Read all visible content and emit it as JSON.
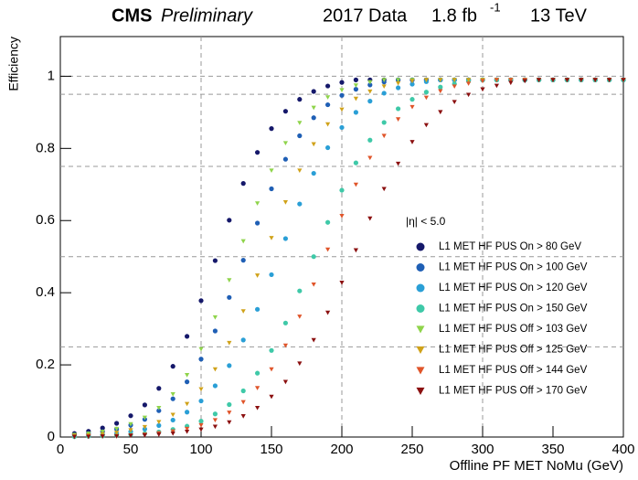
{
  "chart_data": {
    "type": "scatter",
    "title": "CMS",
    "subtitle": "Preliminary",
    "data_label": "2017 Data",
    "lumi": "1.8 fb",
    "lumi_exponent": "-1",
    "energy": "13 TeV",
    "annotation": "|η| < 5.0",
    "x_label": "Offline PF MET NoMu (GeV)",
    "y_label": "Efficiency",
    "xlim": [
      0,
      400
    ],
    "xticks": [
      0,
      50,
      100,
      150,
      200,
      250,
      300,
      350,
      400
    ],
    "ylim": [
      0,
      1.11
    ],
    "yticks": [
      0,
      0.2,
      0.4,
      0.6,
      0.8,
      1
    ],
    "hlines": [
      0.25,
      0.5,
      0.75,
      0.95,
      1
    ],
    "vlines": [
      100,
      200,
      300
    ],
    "x": [
      10,
      20,
      30,
      40,
      50,
      60,
      70,
      80,
      90,
      100,
      110,
      120,
      130,
      140,
      150,
      160,
      170,
      180,
      190,
      200,
      210,
      220,
      230,
      240,
      250,
      260,
      270,
      280,
      290,
      300,
      310,
      320,
      330,
      340,
      350,
      360,
      370,
      380,
      390,
      400
    ],
    "series": [
      {
        "name": "L1 MET HF PUS On > 80 GeV",
        "color": "#15186a",
        "marker": "circle",
        "values": [
          0.01,
          0.016,
          0.025,
          0.038,
          0.059,
          0.089,
          0.135,
          0.196,
          0.279,
          0.378,
          0.489,
          0.601,
          0.703,
          0.789,
          0.855,
          0.903,
          0.936,
          0.958,
          0.973,
          0.983,
          0.99,
          0.99,
          0.99,
          0.99,
          0.99,
          0.99,
          0.99,
          0.99,
          0.99,
          0.99,
          0.99,
          0.99,
          0.99,
          0.99,
          0.99,
          0.99,
          0.99,
          0.99,
          0.99,
          0.99
        ]
      },
      {
        "name": "L1 MET HF PUS On > 100 GeV",
        "color": "#1f5fb5",
        "marker": "circle",
        "values": [
          0.006,
          0.01,
          0.015,
          0.022,
          0.033,
          0.049,
          0.073,
          0.106,
          0.153,
          0.216,
          0.294,
          0.387,
          0.49,
          0.593,
          0.688,
          0.77,
          0.835,
          0.885,
          0.921,
          0.947,
          0.964,
          0.976,
          0.984,
          0.99,
          0.99,
          0.99,
          0.99,
          0.99,
          0.99,
          0.99,
          0.99,
          0.99,
          0.99,
          0.99,
          0.99,
          0.99,
          0.99,
          0.99,
          0.99,
          0.99
        ]
      },
      {
        "name": "L1 MET HF PUS On > 120 GeV",
        "color": "#2a9fd6",
        "marker": "circle",
        "values": [
          0.003,
          0.004,
          0.007,
          0.01,
          0.015,
          0.022,
          0.032,
          0.047,
          0.069,
          0.1,
          0.142,
          0.198,
          0.269,
          0.354,
          0.45,
          0.55,
          0.646,
          0.731,
          0.802,
          0.858,
          0.9,
          0.931,
          0.953,
          0.968,
          0.978,
          0.985,
          0.99,
          0.99,
          0.99,
          0.99,
          0.99,
          0.99,
          0.99,
          0.99,
          0.99,
          0.99,
          0.99,
          0.99,
          0.99,
          0.99
        ]
      },
      {
        "name": "L1 MET HF PUS On > 150 GeV",
        "color": "#3fc9a8",
        "marker": "circle",
        "values": [
          0.001,
          0.002,
          0.003,
          0.005,
          0.007,
          0.01,
          0.014,
          0.021,
          0.03,
          0.044,
          0.064,
          0.09,
          0.128,
          0.177,
          0.24,
          0.316,
          0.405,
          0.5,
          0.595,
          0.684,
          0.76,
          0.823,
          0.872,
          0.91,
          0.936,
          0.956,
          0.97,
          0.979,
          0.986,
          0.99,
          0.99,
          0.99,
          0.99,
          0.99,
          0.99,
          0.99,
          0.99,
          0.99,
          0.99,
          0.99
        ]
      },
      {
        "name": "L1 MET HF PUS Off > 103 GeV",
        "color": "#8fd44b",
        "marker": "triangle",
        "values": [
          0.006,
          0.01,
          0.015,
          0.023,
          0.036,
          0.054,
          0.081,
          0.119,
          0.172,
          0.244,
          0.332,
          0.435,
          0.543,
          0.648,
          0.739,
          0.815,
          0.871,
          0.913,
          0.942,
          0.962,
          0.975,
          0.984,
          0.99,
          0.99,
          0.99,
          0.99,
          0.99,
          0.99,
          0.99,
          0.99,
          0.99,
          0.99,
          0.99,
          0.99,
          0.99,
          0.99,
          0.99,
          0.99,
          0.99,
          0.99
        ]
      },
      {
        "name": "L1 MET HF PUS Off > 125 GeV",
        "color": "#d0a21a",
        "marker": "triangle",
        "values": [
          0.004,
          0.005,
          0.008,
          0.012,
          0.019,
          0.028,
          0.042,
          0.062,
          0.092,
          0.133,
          0.188,
          0.261,
          0.349,
          0.448,
          0.552,
          0.651,
          0.739,
          0.812,
          0.867,
          0.908,
          0.938,
          0.958,
          0.972,
          0.981,
          0.987,
          0.99,
          0.99,
          0.99,
          0.99,
          0.99,
          0.99,
          0.99,
          0.99,
          0.99,
          0.99,
          0.99,
          0.99,
          0.99,
          0.99,
          0.99
        ]
      },
      {
        "name": "L1 MET HF PUS Off > 144 GeV",
        "color": "#e0552a",
        "marker": "triangle",
        "values": [
          0.001,
          0.002,
          0.002,
          0.003,
          0.005,
          0.007,
          0.011,
          0.016,
          0.023,
          0.033,
          0.047,
          0.068,
          0.097,
          0.136,
          0.188,
          0.254,
          0.334,
          0.423,
          0.52,
          0.613,
          0.7,
          0.774,
          0.835,
          0.881,
          0.915,
          0.941,
          0.959,
          0.972,
          0.98,
          0.987,
          0.99,
          0.99,
          0.99,
          0.99,
          0.99,
          0.99,
          0.99,
          0.99,
          0.99,
          0.99
        ]
      },
      {
        "name": "L1 MET HF PUS Off > 170 GeV",
        "color": "#8b1010",
        "marker": "triangle",
        "values": [
          0.001,
          0.001,
          0.002,
          0.002,
          0.004,
          0.005,
          0.007,
          0.01,
          0.015,
          0.021,
          0.029,
          0.041,
          0.058,
          0.081,
          0.112,
          0.153,
          0.204,
          0.269,
          0.345,
          0.428,
          0.518,
          0.606,
          0.688,
          0.758,
          0.818,
          0.865,
          0.901,
          0.929,
          0.949,
          0.964,
          0.974,
          0.982,
          0.987,
          0.99,
          0.99,
          0.99,
          0.99,
          0.99,
          0.99,
          0.99
        ]
      }
    ]
  }
}
